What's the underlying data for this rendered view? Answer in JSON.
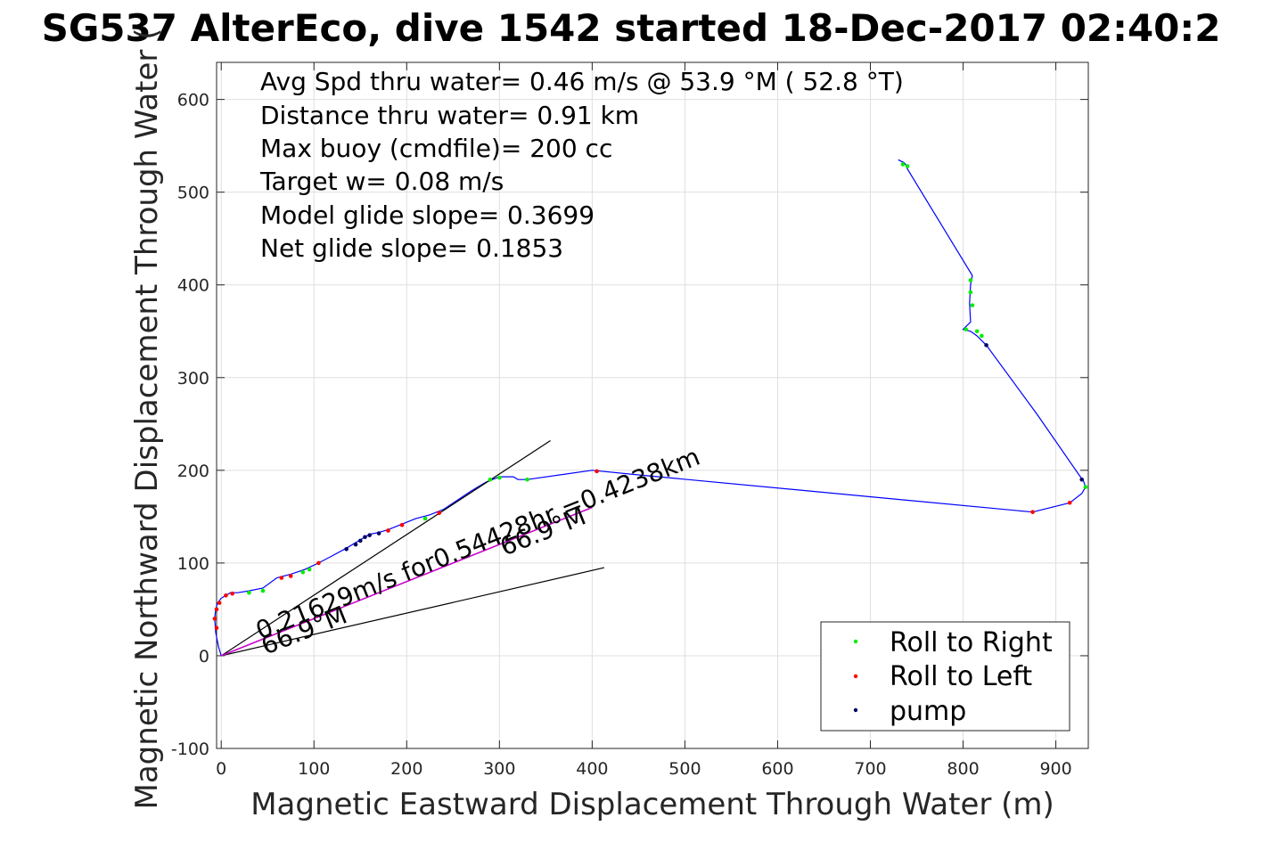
{
  "chart_data": {
    "type": "line",
    "title": "SG537 AlterEco, dive 1542 started 18-Dec-2017 02:40:2",
    "xlabel": "Magnetic Eastward Displacement Through Water (m)",
    "ylabel": "Magnetic Northward Displacement Through Water (",
    "xlim": [
      -5,
      935
    ],
    "ylim": [
      -100,
      640
    ],
    "xticks": [
      0,
      100,
      200,
      300,
      400,
      500,
      600,
      700,
      800,
      900
    ],
    "yticks": [
      -100,
      0,
      100,
      200,
      300,
      400,
      500,
      600
    ],
    "grid": true,
    "info_lines": [
      "Avg Spd thru water=  0.46 m/s @  53.9 °M ( 52.8 °T)",
      "Distance thru water=  0.91 km",
      "Max buoy (cmdfile)= 200 cc",
      "Target w= 0.08 m/s",
      "Model glide slope= 0.3699",
      "Net glide slope= 0.1853"
    ],
    "track": {
      "color": "#0000ff",
      "x": [
        0,
        -3,
        -6,
        -7,
        -6,
        -4,
        0,
        5,
        10,
        18,
        30,
        45,
        60,
        75,
        90,
        105,
        120,
        135,
        150,
        160,
        170,
        180,
        195,
        210,
        225,
        240,
        255,
        270,
        285,
        300,
        315,
        320,
        330,
        400,
        450,
        875,
        915,
        928,
        932,
        930,
        925,
        880,
        825,
        815,
        808,
        800,
        808,
        807,
        808,
        810,
        740,
        738,
        736,
        730
      ],
      "y": [
        0,
        10,
        25,
        40,
        50,
        57,
        62,
        65,
        68,
        68,
        70,
        73,
        84,
        88,
        93,
        100,
        108,
        116,
        125,
        131,
        133,
        136,
        142,
        148,
        152,
        158,
        168,
        178,
        187,
        193,
        193,
        190,
        190,
        200,
        195,
        155,
        165,
        175,
        182,
        188,
        195,
        260,
        335,
        345,
        350,
        352,
        360,
        380,
        400,
        410,
        525,
        530,
        532,
        535
      ]
    },
    "slope_lines": [
      {
        "x": [
          0,
          355
        ],
        "y": [
          0,
          232
        ]
      },
      {
        "x": [
          0,
          413
        ],
        "y": [
          0,
          95
        ]
      }
    ],
    "mean_line": {
      "color": "#cc00cc",
      "x": [
        0,
        400
      ],
      "y": [
        0,
        160
      ]
    },
    "markers": {
      "roll_right": {
        "color": "#00ee00",
        "points": [
          [
            30,
            68
          ],
          [
            45,
            70
          ],
          [
            88,
            90
          ],
          [
            95,
            93
          ],
          [
            220,
            148
          ],
          [
            290,
            190
          ],
          [
            300,
            192
          ],
          [
            330,
            190
          ],
          [
            735,
            530
          ],
          [
            740,
            528
          ],
          [
            808,
            405
          ],
          [
            808,
            392
          ],
          [
            810,
            378
          ],
          [
            803,
            352
          ],
          [
            815,
            350
          ],
          [
            820,
            345
          ],
          [
            932,
            182
          ]
        ]
      },
      "roll_left": {
        "color": "#ff0000",
        "points": [
          [
            -5,
            30
          ],
          [
            -7,
            40
          ],
          [
            -5,
            50
          ],
          [
            -2,
            57
          ],
          [
            5,
            65
          ],
          [
            12,
            67
          ],
          [
            65,
            84
          ],
          [
            75,
            86
          ],
          [
            105,
            100
          ],
          [
            180,
            135
          ],
          [
            195,
            141
          ],
          [
            235,
            154
          ],
          [
            405,
            199
          ],
          [
            875,
            155
          ],
          [
            915,
            165
          ]
        ]
      },
      "pump": {
        "color": "#000066",
        "points": [
          [
            135,
            115
          ],
          [
            145,
            120
          ],
          [
            150,
            124
          ],
          [
            155,
            128
          ],
          [
            160,
            130
          ],
          [
            170,
            132
          ],
          [
            825,
            335
          ],
          [
            928,
            190
          ]
        ]
      }
    },
    "annotations": [
      {
        "text": "0.21629m/s for0.54428hr =0.4238km"
      },
      {
        "text": "66.9°M"
      },
      {
        "text": "66.9°M"
      }
    ],
    "legend": {
      "placement": "bottom-right",
      "entries": [
        {
          "label": "Roll to Right",
          "color": "#00ee00"
        },
        {
          "label": "Roll to Left",
          "color": "#ff0000"
        },
        {
          "label": "pump",
          "color": "#000066"
        }
      ]
    }
  }
}
